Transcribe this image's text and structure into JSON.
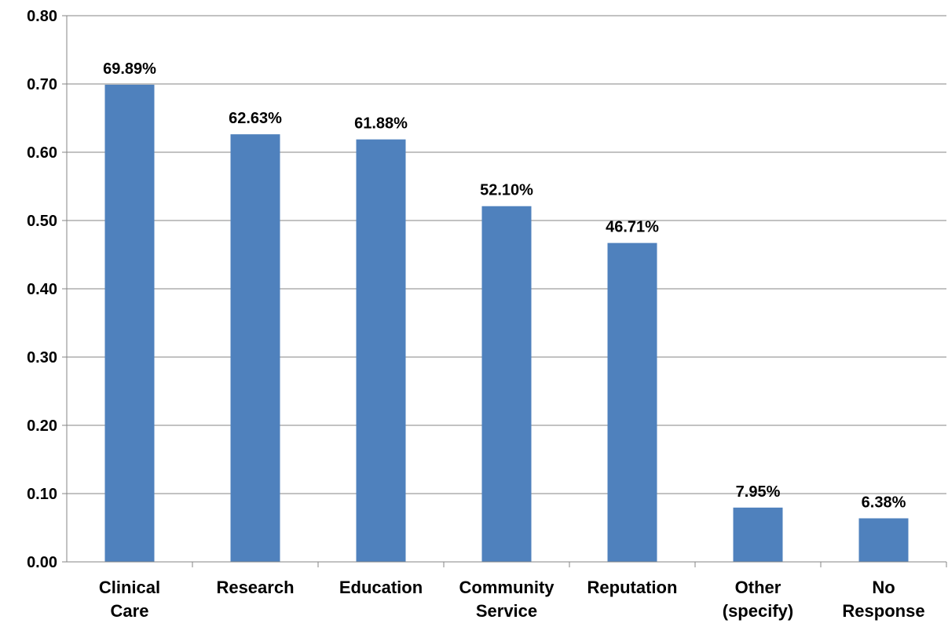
{
  "chart_data": {
    "type": "bar",
    "title": "",
    "xlabel": "",
    "ylabel": "",
    "categories": [
      [
        "Clinical",
        "Care"
      ],
      [
        "Research"
      ],
      [
        "Education"
      ],
      [
        "Community",
        "Service"
      ],
      [
        "Reputation"
      ],
      [
        "Other",
        "(specify)"
      ],
      [
        "No",
        "Response"
      ]
    ],
    "values": [
      0.6989,
      0.6263,
      0.6188,
      0.521,
      0.4671,
      0.0795,
      0.0638
    ],
    "data_labels": [
      "69.89%",
      "62.63%",
      "61.88%",
      "52.10%",
      "46.71%",
      "7.95%",
      "6.38%"
    ],
    "yticks": [
      "0.00",
      "0.10",
      "0.20",
      "0.30",
      "0.40",
      "0.50",
      "0.60",
      "0.70",
      "0.80"
    ],
    "ylim": [
      0,
      0.8
    ],
    "grid": true,
    "legend": "none",
    "colors": {
      "bar": "#4F81BD",
      "grid": "#868686",
      "text": "#000000"
    }
  }
}
